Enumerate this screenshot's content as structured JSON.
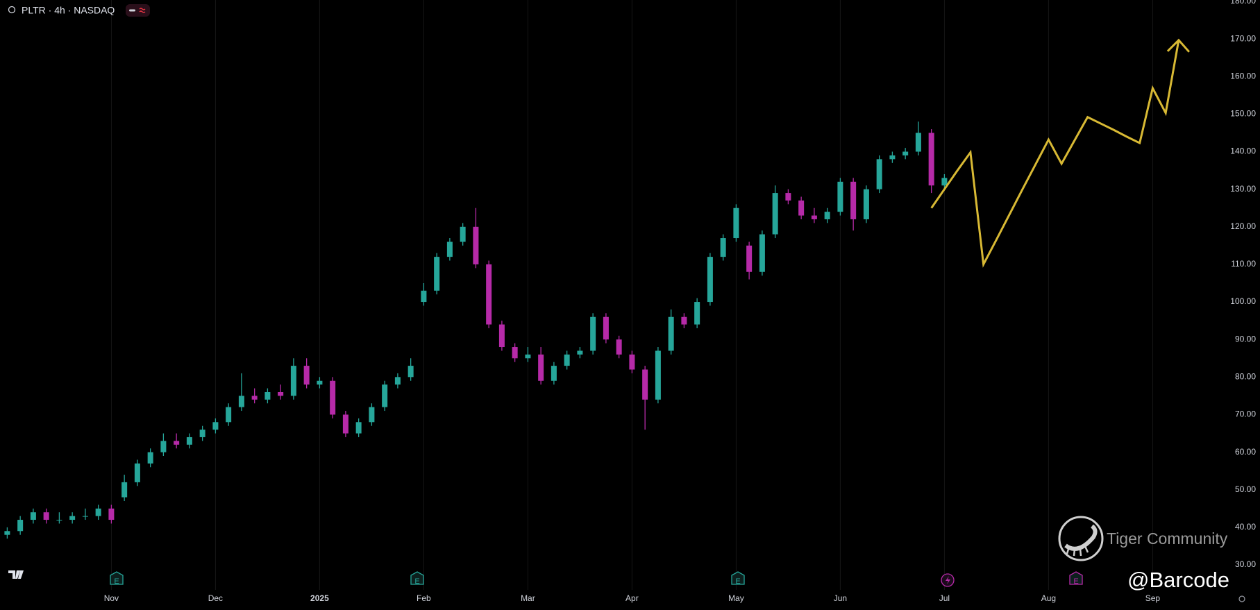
{
  "chart_data": {
    "type": "candlestick",
    "title": "PLTR · 4h · NASDAQ",
    "categories": [
      null,
      null,
      null,
      null,
      null,
      null,
      null,
      null,
      "Nov",
      null,
      null,
      null,
      null,
      null,
      null,
      null,
      "Dec",
      null,
      null,
      null,
      null,
      null,
      null,
      null,
      "2025",
      null,
      null,
      null,
      null,
      null,
      null,
      null,
      "Feb",
      null,
      null,
      null,
      null,
      null,
      null,
      null,
      "Mar",
      null,
      null,
      null,
      null,
      null,
      null,
      null,
      "Apr",
      null,
      null,
      null,
      null,
      null,
      null,
      null,
      "May",
      null,
      null,
      null,
      null,
      null,
      null,
      null,
      "Jun",
      null,
      null,
      null,
      null,
      null,
      null,
      null,
      "Jul",
      null,
      null,
      null,
      null,
      null,
      null,
      null,
      "Aug",
      null,
      null,
      null,
      null,
      null,
      null,
      null,
      "Sep",
      null,
      null,
      null,
      null,
      null
    ],
    "open": [
      38,
      39,
      42,
      44,
      42,
      42,
      43,
      43,
      45,
      48,
      52,
      57,
      60,
      63,
      62,
      64,
      66,
      68,
      72,
      75,
      74,
      76,
      75,
      83,
      78,
      79,
      70,
      65,
      68,
      72,
      78,
      80,
      100,
      103,
      112,
      116,
      120,
      110,
      94,
      88,
      85,
      86,
      79,
      83,
      86,
      87,
      96,
      90,
      86,
      82,
      74,
      87,
      96,
      94,
      100,
      112,
      117,
      115,
      108,
      118,
      129,
      127,
      123,
      122,
      124,
      132,
      122,
      130,
      138,
      139,
      140,
      145,
      131,
      null,
      null,
      null,
      null,
      null,
      null,
      null,
      null,
      null,
      null,
      null,
      null,
      null,
      null,
      null,
      null,
      null,
      null,
      null,
      null,
      null
    ],
    "high": [
      40,
      43,
      45,
      45,
      44,
      44,
      45,
      46,
      46,
      54,
      58,
      61,
      65,
      65,
      65,
      67,
      69,
      73,
      81,
      77,
      77,
      78,
      85,
      85,
      80,
      80,
      71,
      69,
      73,
      79,
      81,
      85,
      105,
      113,
      117,
      121,
      125,
      111,
      95,
      89,
      88,
      88,
      84,
      87,
      88,
      97,
      97,
      91,
      87,
      83,
      88,
      98,
      97,
      101,
      113,
      118,
      126,
      116,
      119,
      131,
      130,
      128,
      125,
      125,
      133,
      133,
      131,
      139,
      140,
      141,
      148,
      146,
      134,
      null,
      null,
      null,
      null,
      null,
      null,
      null,
      null,
      null,
      null,
      null,
      null,
      null,
      null,
      null,
      null,
      null,
      null,
      null,
      null,
      null
    ],
    "low": [
      37,
      38,
      41,
      41,
      41,
      41,
      42,
      42,
      41,
      47,
      51,
      56,
      59,
      61,
      61,
      63,
      65,
      67,
      71,
      73,
      73,
      74,
      74,
      77,
      77,
      69,
      64,
      64,
      67,
      71,
      77,
      79,
      99,
      102,
      111,
      115,
      109,
      93,
      87,
      84,
      84,
      78,
      78,
      82,
      85,
      86,
      89,
      85,
      81,
      66,
      73,
      86,
      93,
      93,
      99,
      111,
      116,
      106,
      107,
      117,
      126,
      122,
      121,
      121,
      123,
      119,
      121,
      129,
      137,
      138,
      139,
      129,
      130,
      null,
      null,
      null,
      null,
      null,
      null,
      null,
      null,
      null,
      null,
      null,
      null,
      null,
      null,
      null,
      null,
      null,
      null,
      null,
      null,
      null
    ],
    "close": [
      39,
      42,
      44,
      42,
      42,
      43,
      43,
      45,
      42,
      52,
      57,
      60,
      63,
      62,
      64,
      66,
      68,
      72,
      75,
      74,
      76,
      75,
      83,
      78,
      79,
      70,
      65,
      68,
      72,
      78,
      80,
      83,
      103,
      112,
      116,
      120,
      110,
      94,
      88,
      85,
      86,
      79,
      83,
      86,
      87,
      96,
      90,
      86,
      82,
      74,
      87,
      96,
      94,
      100,
      112,
      117,
      125,
      108,
      118,
      129,
      127,
      123,
      122,
      124,
      132,
      122,
      130,
      138,
      139,
      140,
      145,
      131,
      133,
      null,
      null,
      null,
      null,
      null,
      null,
      null,
      null,
      null,
      null,
      null,
      null,
      null,
      null,
      null,
      null,
      null,
      null,
      null,
      null,
      null
    ],
    "up_color": "#26a69a",
    "down_color": "#b62aa8",
    "projection": {
      "color": "#d8b934",
      "values": [
        null,
        null,
        null,
        null,
        null,
        null,
        null,
        null,
        null,
        null,
        null,
        null,
        null,
        null,
        null,
        null,
        null,
        null,
        null,
        null,
        null,
        null,
        null,
        null,
        null,
        null,
        null,
        null,
        null,
        null,
        null,
        null,
        null,
        null,
        null,
        null,
        null,
        null,
        null,
        null,
        null,
        null,
        null,
        null,
        null,
        null,
        null,
        null,
        null,
        null,
        null,
        null,
        null,
        null,
        null,
        null,
        null,
        null,
        null,
        null,
        null,
        null,
        null,
        null,
        null,
        null,
        null,
        null,
        null,
        null,
        null,
        125,
        130,
        135,
        139.8,
        110,
        116.6,
        123.3,
        130,
        136.6,
        143.2,
        136.8,
        143,
        149.2,
        147.5,
        145.8,
        144,
        142.3,
        156.9,
        150.3,
        169.7,
        null,
        null,
        null
      ]
    },
    "ylim": [
      30,
      180
    ],
    "yticks": [
      {
        "value": 30,
        "label": "30.00"
      },
      {
        "value": 40,
        "label": "40.00"
      },
      {
        "value": 50,
        "label": "50.00"
      },
      {
        "value": 60,
        "label": "60.00"
      },
      {
        "value": 70,
        "label": "70.00"
      },
      {
        "value": 80,
        "label": "80.00"
      },
      {
        "value": 90,
        "label": "90.00"
      },
      {
        "value": 100,
        "label": "100.00"
      },
      {
        "value": 110,
        "label": "110.00"
      },
      {
        "value": 120,
        "label": "120.00"
      },
      {
        "value": 130,
        "label": "130.00"
      },
      {
        "value": 140,
        "label": "140.00"
      },
      {
        "value": 150,
        "label": "150.00"
      },
      {
        "value": 160,
        "label": "160.00"
      },
      {
        "value": 170,
        "label": "170.00"
      },
      {
        "value": 180,
        "label": "180.00"
      }
    ],
    "xgrid": true,
    "grid": false,
    "events": [
      "E",
      "E",
      "E",
      "E"
    ],
    "annotations": [
      "Tiger Community",
      "@Barcode"
    ]
  }
}
